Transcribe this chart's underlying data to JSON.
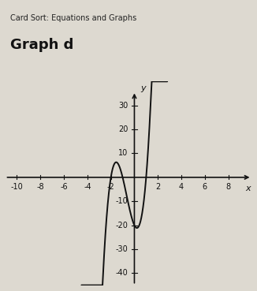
{
  "title_small": "Card Sort: Equations and Graphs",
  "title_large": "Graph d",
  "xlim": [
    -11,
    10
  ],
  "ylim": [
    -45,
    40
  ],
  "xticks": [
    -10,
    -8,
    -6,
    -4,
    -2,
    2,
    4,
    6,
    8
  ],
  "yticks": [
    -40,
    -30,
    -20,
    -10,
    10,
    20,
    30
  ],
  "xlabel": "x",
  "ylabel": "y",
  "curve_color": "#111111",
  "background_color": "#ddd9d0",
  "axis_color": "#111111",
  "tick_label_fontsize": 7,
  "title_small_fontsize": 7,
  "title_large_fontsize": 13,
  "curve_xmin": -4.5,
  "curve_xmax": 2.8
}
